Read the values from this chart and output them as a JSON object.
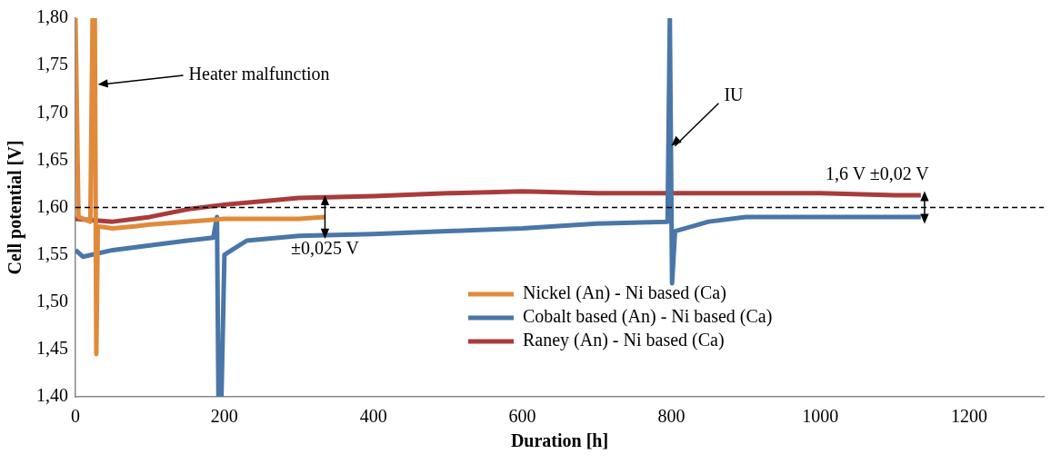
{
  "chart_data": {
    "type": "line",
    "xlabel": "Duration [h]",
    "ylabel": "Cell potential [V]",
    "xlim": [
      0,
      1300
    ],
    "xticks": [
      0,
      200,
      400,
      600,
      800,
      1000,
      1200
    ],
    "ylim": [
      1.4,
      1.8
    ],
    "yticks": [
      {
        "value": 1.4,
        "label": "1,40"
      },
      {
        "value": 1.45,
        "label": "1,45"
      },
      {
        "value": 1.5,
        "label": "1,50"
      },
      {
        "value": 1.55,
        "label": "1,55"
      },
      {
        "value": 1.6,
        "label": "1,60"
      },
      {
        "value": 1.65,
        "label": "1,65"
      },
      {
        "value": 1.7,
        "label": "1,70"
      },
      {
        "value": 1.75,
        "label": "1,75"
      },
      {
        "value": 1.8,
        "label": "1,80"
      }
    ],
    "grid": false,
    "legend": "bottom right",
    "marker": "none",
    "line_style": "solid",
    "series": [
      {
        "name": "Nickel (An) - Ni based (Ca)",
        "color": "#e08a3c",
        "x": [
          0,
          2,
          4,
          20,
          23,
          26,
          28,
          30,
          50,
          80,
          100,
          150,
          200,
          250,
          300,
          335
        ],
        "values": [
          1.8,
          1.7,
          1.59,
          1.585,
          1.8,
          1.8,
          1.445,
          1.58,
          1.578,
          1.58,
          1.582,
          1.585,
          1.588,
          1.588,
          1.588,
          1.59
        ]
      },
      {
        "name": "Cobalt based (An) - Ni based (Ca)",
        "color": "#4a76a8",
        "x": [
          0,
          10,
          50,
          100,
          150,
          185,
          190,
          192,
          196,
          200,
          230,
          300,
          400,
          500,
          600,
          700,
          795,
          798,
          801,
          805,
          850,
          900,
          1000,
          1135
        ],
        "values": [
          1.555,
          1.548,
          1.555,
          1.56,
          1.565,
          1.568,
          1.59,
          1.4,
          1.4,
          1.55,
          1.565,
          1.57,
          1.572,
          1.575,
          1.578,
          1.583,
          1.585,
          1.8,
          1.52,
          1.575,
          1.585,
          1.59,
          1.59,
          1.59
        ]
      },
      {
        "name": "Raney (An) - Ni based (Ca)",
        "color": "#a83c3c",
        "x": [
          0,
          50,
          100,
          150,
          200,
          300,
          400,
          500,
          600,
          700,
          800,
          900,
          1000,
          1100,
          1135
        ],
        "values": [
          1.588,
          1.585,
          1.59,
          1.598,
          1.603,
          1.61,
          1.612,
          1.615,
          1.617,
          1.615,
          1.615,
          1.615,
          1.615,
          1.613,
          1.613
        ]
      }
    ],
    "ref_lines": [
      {
        "axis": "y",
        "value": 1.6,
        "color": "#000000",
        "line_style": "dashed"
      }
    ],
    "annotations": [
      {
        "text": "Heater malfunction",
        "x": 30,
        "y": 1.73
      },
      {
        "text": "IU",
        "x": 800,
        "y": 1.665
      },
      {
        "text": "±0,025 V",
        "x": 335,
        "y": 1.59
      },
      {
        "text": "1,6 V ±0,02 V",
        "x": 1140,
        "y": 1.6
      }
    ]
  }
}
